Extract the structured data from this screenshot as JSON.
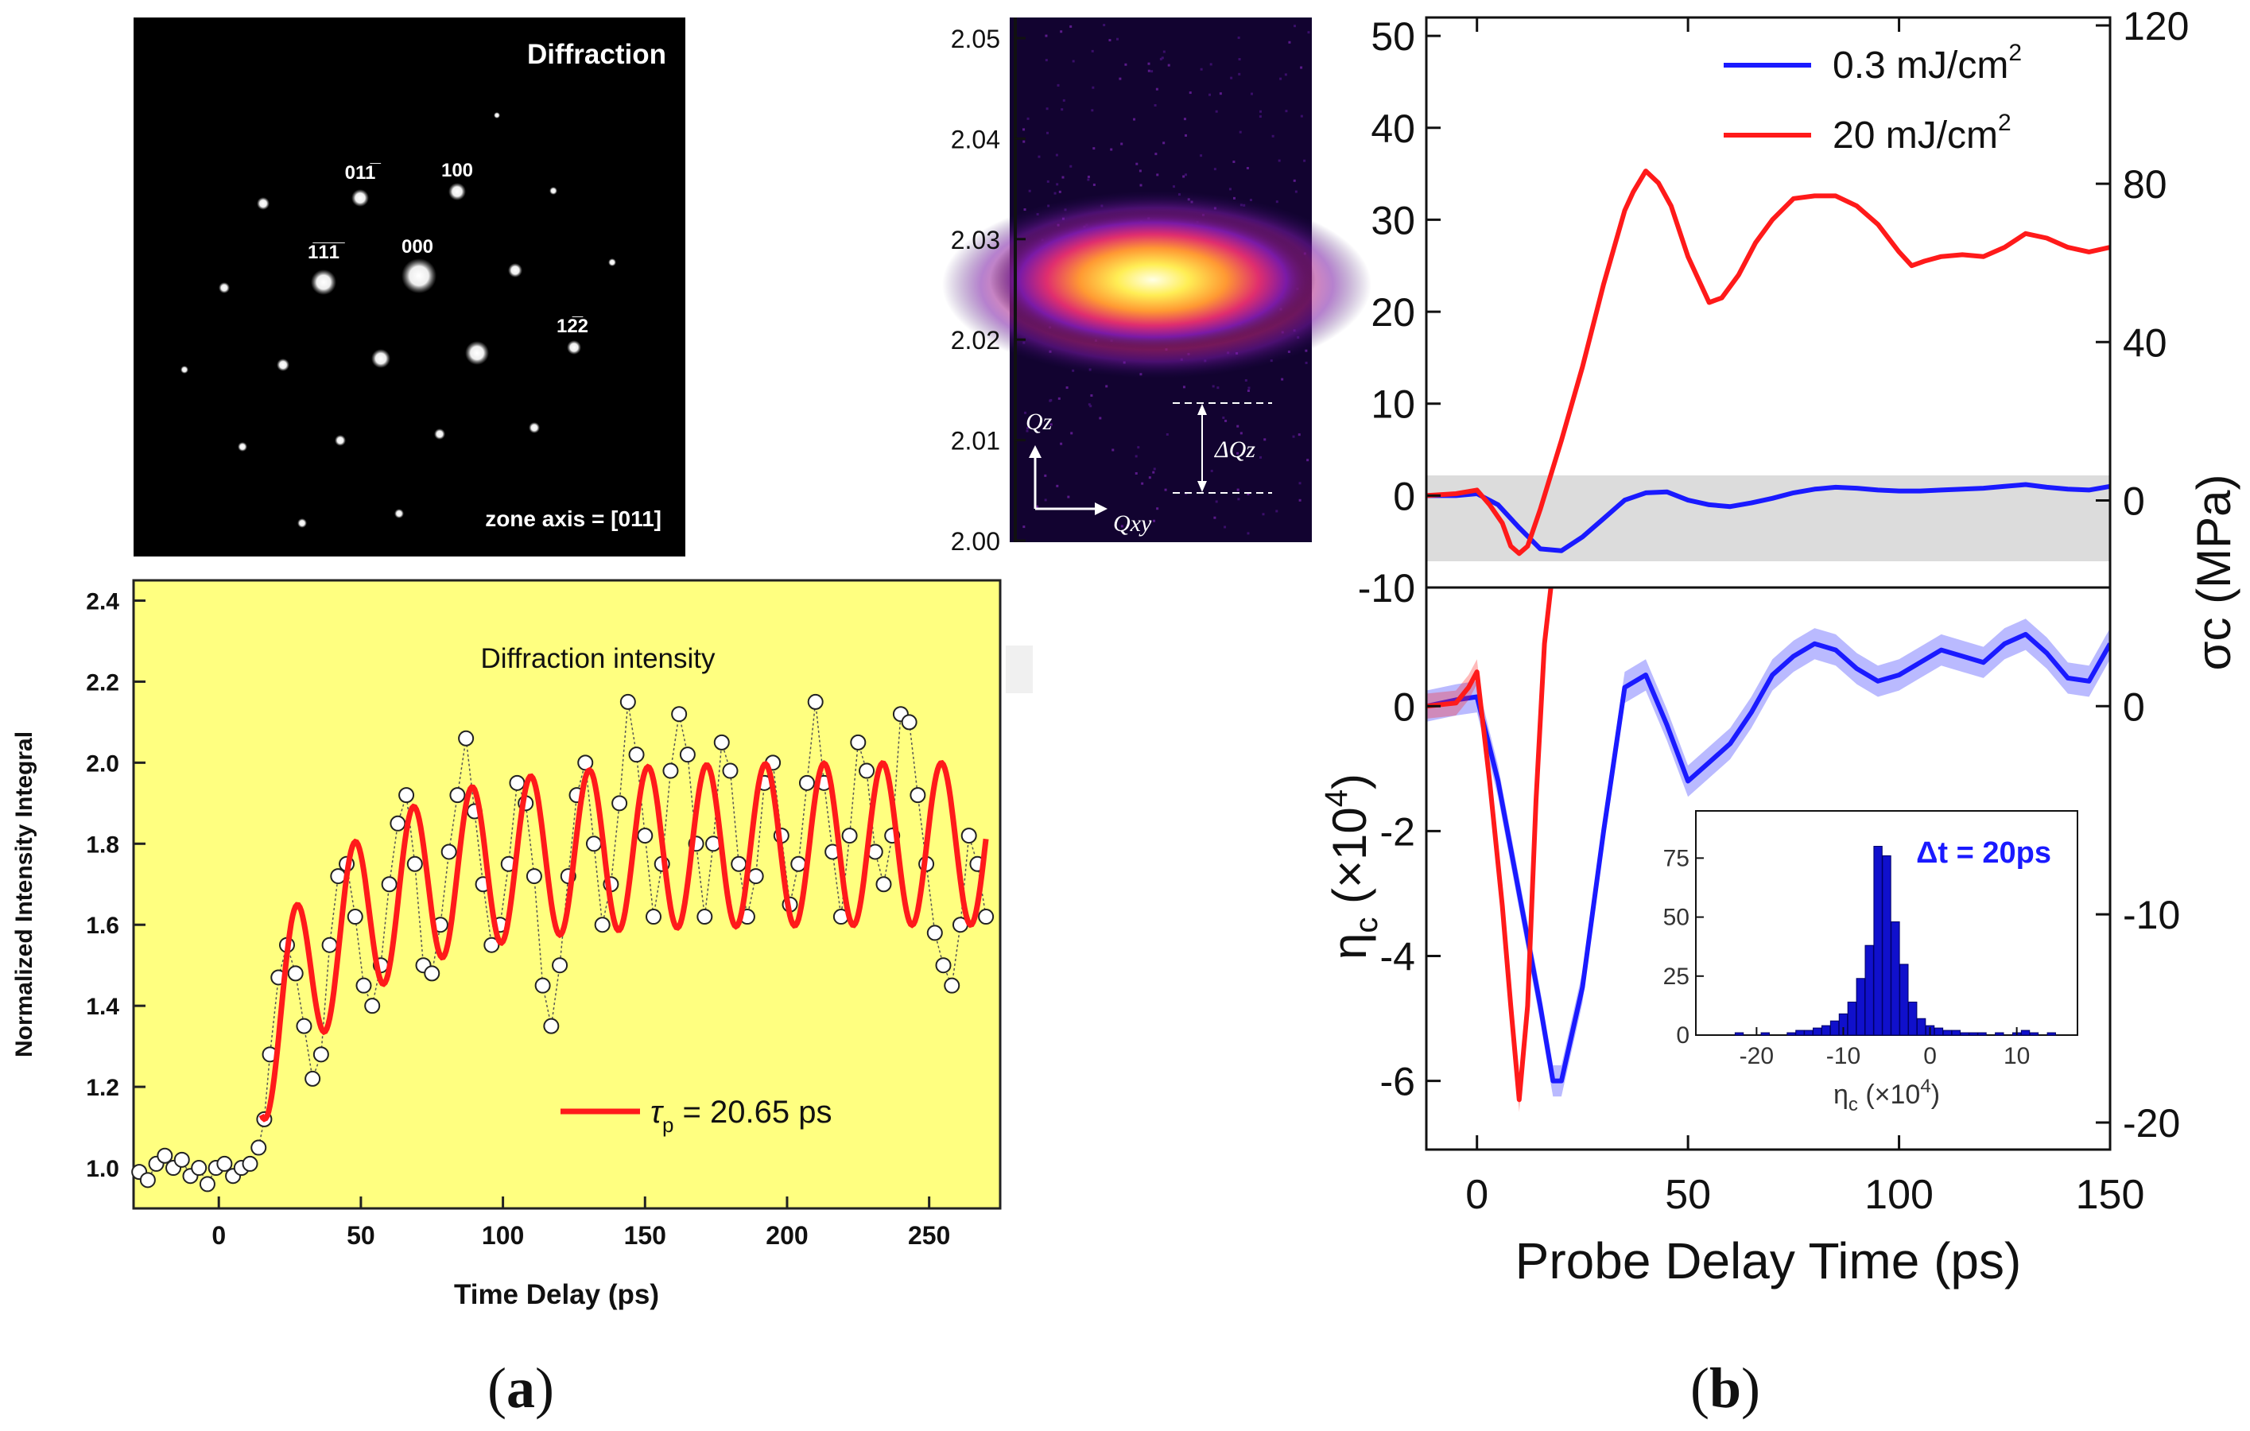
{
  "panel_labels": {
    "a": "(a)",
    "a_letter": "a",
    "b": "(b)",
    "b_letter": "b"
  },
  "chart_data": [
    {
      "type": "image",
      "id": "diffraction-pattern",
      "title": "Diffraction",
      "footer": "zone axis = [011]",
      "spot_labels": [
        "011̅",
        "100",
        "1̅1̅1̅",
        "000",
        "12̅2"
      ]
    },
    {
      "type": "heatmap",
      "id": "rocking-map",
      "y_ticks": [
        "2.05",
        "2.04",
        "2.03",
        "2.02",
        "2.01",
        "2.00"
      ],
      "ylim": [
        2.0,
        2.055
      ],
      "ylabel_inset": "Qz",
      "xlabel_inset": "Qxy",
      "annotation": "ΔQz",
      "center_y": 2.028
    },
    {
      "type": "scatter",
      "id": "panel-a-intensity",
      "title": "Diffraction intensity",
      "xlabel": "Time Delay (ps)",
      "ylabel": "Normalized Intensity Integral",
      "xlim": [
        -30,
        275
      ],
      "ylim": [
        0.9,
        2.45
      ],
      "x_ticks": [
        0,
        50,
        100,
        150,
        200,
        250
      ],
      "y_ticks": [
        1.0,
        1.2,
        1.4,
        1.6,
        1.8,
        2.0,
        2.2,
        2.4
      ],
      "legend": "τp = 20.65 ps",
      "legend_symbol": "τ",
      "legend_sub": "p",
      "legend_rest": " = 20.65 ps",
      "fit": {
        "period_ps": 20.65,
        "start": 15,
        "end": 270,
        "amp": 0.2,
        "baseline_start": 1.4,
        "baseline_end": 1.8,
        "rise": 35,
        "offset_start": -0.1
      },
      "points_pre": [
        [
          -28,
          0.99
        ],
        [
          -25,
          0.97
        ],
        [
          -22,
          1.01
        ],
        [
          -19,
          1.03
        ],
        [
          -16,
          1.0
        ],
        [
          -13,
          1.02
        ],
        [
          -10,
          0.98
        ],
        [
          -7,
          1.0
        ],
        [
          -4,
          0.96
        ],
        [
          -1,
          1.0
        ],
        [
          2,
          1.01
        ],
        [
          5,
          0.98
        ],
        [
          8,
          1.0
        ],
        [
          11,
          1.01
        ],
        [
          14,
          1.05
        ],
        [
          16,
          1.12
        ]
      ],
      "points_osc": [
        [
          18,
          1.28
        ],
        [
          21,
          1.47
        ],
        [
          24,
          1.55
        ],
        [
          27,
          1.48
        ],
        [
          30,
          1.35
        ],
        [
          33,
          1.22
        ],
        [
          36,
          1.28
        ],
        [
          39,
          1.55
        ],
        [
          42,
          1.72
        ],
        [
          45,
          1.75
        ],
        [
          48,
          1.62
        ],
        [
          51,
          1.45
        ],
        [
          54,
          1.4
        ],
        [
          57,
          1.5
        ],
        [
          60,
          1.7
        ],
        [
          63,
          1.85
        ],
        [
          66,
          1.92
        ],
        [
          69,
          1.75
        ],
        [
          72,
          1.5
        ],
        [
          75,
          1.48
        ],
        [
          78,
          1.6
        ],
        [
          81,
          1.78
        ],
        [
          84,
          1.92
        ],
        [
          87,
          2.06
        ],
        [
          90,
          1.88
        ],
        [
          93,
          1.7
        ],
        [
          96,
          1.55
        ],
        [
          99,
          1.6
        ],
        [
          102,
          1.75
        ],
        [
          105,
          1.95
        ],
        [
          108,
          1.9
        ],
        [
          111,
          1.72
        ],
        [
          114,
          1.45
        ],
        [
          117,
          1.35
        ],
        [
          120,
          1.5
        ],
        [
          123,
          1.72
        ],
        [
          126,
          1.92
        ],
        [
          129,
          2.0
        ],
        [
          132,
          1.8
        ],
        [
          135,
          1.6
        ],
        [
          138,
          1.7
        ],
        [
          141,
          1.9
        ],
        [
          144,
          2.15
        ],
        [
          147,
          2.02
        ],
        [
          150,
          1.82
        ],
        [
          153,
          1.62
        ],
        [
          156,
          1.75
        ],
        [
          159,
          1.98
        ],
        [
          162,
          2.12
        ],
        [
          165,
          2.02
        ],
        [
          168,
          1.8
        ],
        [
          171,
          1.62
        ],
        [
          174,
          1.8
        ],
        [
          177,
          2.05
        ],
        [
          180,
          1.98
        ],
        [
          183,
          1.75
        ],
        [
          186,
          1.62
        ],
        [
          189,
          1.72
        ],
        [
          192,
          1.95
        ],
        [
          195,
          2.0
        ],
        [
          198,
          1.82
        ],
        [
          201,
          1.65
        ],
        [
          204,
          1.75
        ],
        [
          207,
          1.95
        ],
        [
          210,
          2.15
        ],
        [
          213,
          1.95
        ],
        [
          216,
          1.78
        ],
        [
          219,
          1.62
        ],
        [
          222,
          1.82
        ],
        [
          225,
          2.05
        ],
        [
          228,
          1.98
        ],
        [
          231,
          1.78
        ],
        [
          234,
          1.7
        ],
        [
          237,
          1.82
        ],
        [
          240,
          2.12
        ],
        [
          243,
          2.1
        ],
        [
          246,
          1.92
        ],
        [
          249,
          1.75
        ],
        [
          252,
          1.58
        ],
        [
          255,
          1.5
        ],
        [
          258,
          1.45
        ],
        [
          261,
          1.6
        ],
        [
          264,
          1.82
        ],
        [
          267,
          1.75
        ],
        [
          270,
          1.62
        ]
      ]
    },
    {
      "type": "line",
      "id": "panel-b-stress",
      "xlim": [
        -12,
        150
      ],
      "ylim": [
        -10,
        52
      ],
      "y2lim": [
        -22,
        122
      ],
      "y_ticks": [
        -10,
        0,
        10,
        20,
        30,
        40,
        50
      ],
      "y2_ticks": [
        0,
        40,
        80,
        120
      ],
      "ylabel_right": "σc (MPa)",
      "shade_band": [
        -7,
        2
      ],
      "series": [
        {
          "name": "0.3 mJ/cm²",
          "legend_base": "0.3 mJ/cm",
          "legend_sup": "2",
          "color": "#1a1aff",
          "x": [
            -12,
            -5,
            0,
            5,
            10,
            15,
            20,
            25,
            30,
            35,
            40,
            45,
            50,
            55,
            60,
            65,
            70,
            75,
            80,
            85,
            90,
            95,
            100,
            105,
            110,
            115,
            120,
            125,
            130,
            135,
            140,
            145,
            150
          ],
          "y": [
            0,
            0,
            0.2,
            -1,
            -3.5,
            -5.8,
            -6,
            -4.5,
            -2.5,
            -0.5,
            0.3,
            0.4,
            -0.5,
            -1,
            -1.2,
            -0.8,
            -0.3,
            0.3,
            0.7,
            0.9,
            0.8,
            0.6,
            0.5,
            0.5,
            0.6,
            0.7,
            0.8,
            1.0,
            1.2,
            0.9,
            0.7,
            0.6,
            1.0
          ]
        },
        {
          "name": "20 mJ/cm²",
          "legend_base": "20 mJ/cm",
          "legend_sup": "2",
          "color": "#ff1a1a",
          "x": [
            -12,
            -5,
            0,
            3,
            6,
            8,
            10,
            12,
            15,
            20,
            25,
            30,
            35,
            37,
            40,
            43,
            46,
            50,
            55,
            58,
            62,
            66,
            70,
            75,
            80,
            85,
            90,
            95,
            100,
            103,
            106,
            110,
            115,
            120,
            125,
            130,
            135,
            140,
            145,
            150
          ],
          "y": [
            0,
            0.2,
            0.6,
            -1,
            -3,
            -5.5,
            -6.3,
            -5.5,
            -1.5,
            6,
            14,
            23,
            31,
            33,
            35.3,
            34,
            31.5,
            26,
            21,
            21.5,
            24,
            27.5,
            30,
            32.3,
            32.6,
            32.6,
            31.5,
            29.5,
            26.5,
            25,
            25.5,
            26,
            26.2,
            26,
            27,
            28.5,
            28,
            27,
            26.5,
            27
          ]
        }
      ],
      "legend_position": "top-right"
    },
    {
      "type": "line",
      "id": "panel-b-strain",
      "xlim": [
        -12,
        150
      ],
      "ylim": [
        -7.1,
        1.9
      ],
      "y2lim": [
        -21.3,
        5.7
      ],
      "x_ticks": [
        0,
        50,
        100,
        150
      ],
      "y_ticks": [
        -6,
        -4,
        -2,
        0
      ],
      "y2_ticks": [
        -20,
        -10,
        0
      ],
      "xlabel": "Probe Delay Time (ps)",
      "ylabel": "ηc (×10⁴)",
      "ylabel_base": "η",
      "ylabel_sub": "c",
      "ylabel_paren": " (×10",
      "ylabel_sup": "4",
      "ylabel_close": ")",
      "series": [
        {
          "name": "0.3 mJ/cm² strain",
          "color": "#1a1aff",
          "band": 0.25,
          "x": [
            -12,
            -5,
            0,
            5,
            10,
            15,
            18,
            20,
            25,
            30,
            35,
            40,
            45,
            50,
            55,
            60,
            65,
            70,
            75,
            80,
            85,
            90,
            95,
            100,
            105,
            110,
            115,
            120,
            125,
            130,
            135,
            140,
            145,
            150
          ],
          "y": [
            0,
            0.1,
            0.15,
            -1.2,
            -3,
            -4.8,
            -6,
            -6,
            -4.5,
            -2,
            0.3,
            0.5,
            -0.3,
            -1.2,
            -0.9,
            -0.6,
            -0.1,
            0.5,
            0.8,
            1.0,
            0.9,
            0.6,
            0.4,
            0.5,
            0.7,
            0.9,
            0.8,
            0.7,
            1.0,
            1.15,
            0.85,
            0.45,
            0.4,
            1.0
          ]
        },
        {
          "name": "20 mJ/cm² strain",
          "color": "#ff1a1a",
          "band": 0.2,
          "x": [
            -12,
            -5,
            -2,
            0,
            3,
            6,
            8,
            10,
            12,
            14,
            16,
            18
          ],
          "y": [
            0,
            0.05,
            0.3,
            0.55,
            -1.2,
            -3.2,
            -4.8,
            -6.3,
            -4.8,
            -1.5,
            1,
            2.2
          ]
        }
      ]
    },
    {
      "type": "bar",
      "id": "panel-b-inset",
      "title": "Δt = 20ps",
      "xlabel": "ηc (×10⁴)",
      "xlabel_base": "η",
      "xlabel_sub": "c",
      "xlabel_paren": " (×10",
      "xlabel_sup": "4",
      "xlabel_close": ")",
      "xlim": [
        -27,
        17
      ],
      "ylim": [
        0,
        95
      ],
      "x_ticks": [
        -20,
        -10,
        0,
        10
      ],
      "y_ticks": [
        0,
        25,
        50,
        75
      ],
      "bins_x": [
        -22,
        -19,
        -16,
        -15,
        -14,
        -13,
        -12,
        -11,
        -10,
        -9,
        -8,
        -7,
        -6,
        -5,
        -4,
        -3,
        -2,
        -1,
        0,
        1,
        2,
        3,
        4,
        5,
        6,
        8,
        10,
        11,
        12,
        14
      ],
      "counts": [
        1,
        1,
        1,
        2,
        2,
        3,
        4,
        6,
        9,
        14,
        24,
        38,
        80,
        76,
        48,
        30,
        14,
        7,
        4,
        3,
        2,
        2,
        1,
        1,
        1,
        1,
        1,
        2,
        1,
        1
      ]
    }
  ]
}
